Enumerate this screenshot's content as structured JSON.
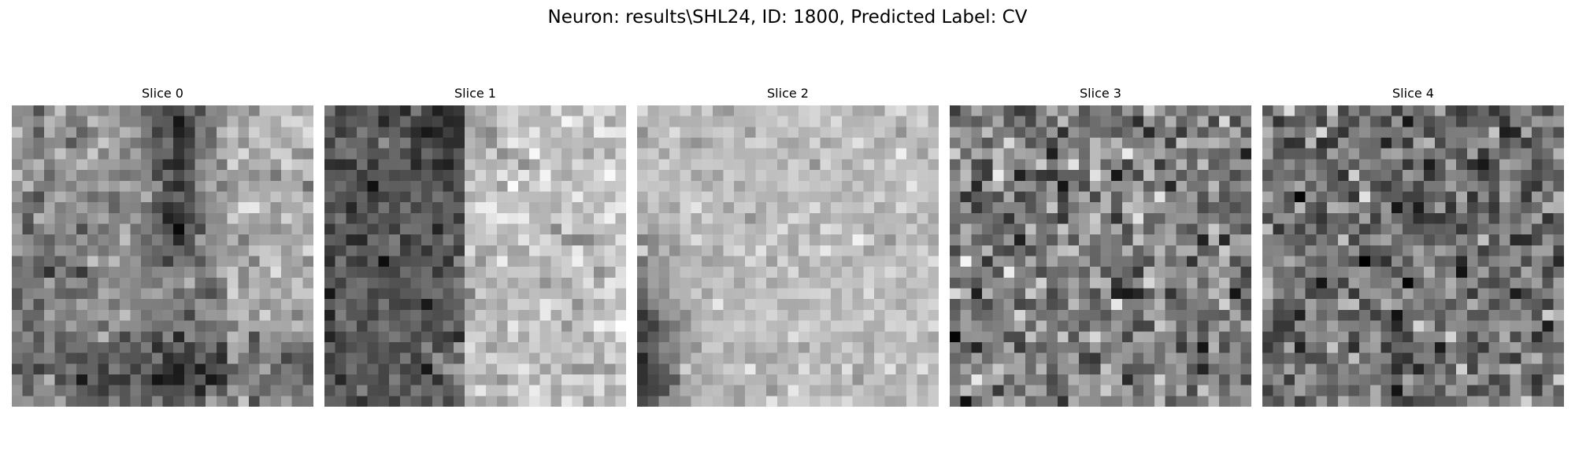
{
  "figure": {
    "title": "Neuron: results\\SHL24, ID: 1800, Predicted Label: CV",
    "colormap": "gray",
    "grid_size": 28,
    "slices": [
      {
        "label": "Slice 0",
        "pattern": "dark vertical band on center-left plus dark lower region, lighter top-right"
      },
      {
        "label": "Slice 1",
        "pattern": "dark left half, light right half"
      },
      {
        "label": "Slice 2",
        "pattern": "mostly light, dark lower-left edge"
      },
      {
        "label": "Slice 3",
        "pattern": "uniform mid-gray noise"
      },
      {
        "label": "Slice 4",
        "pattern": "uniform mid-gray noise, slightly darker"
      }
    ]
  }
}
